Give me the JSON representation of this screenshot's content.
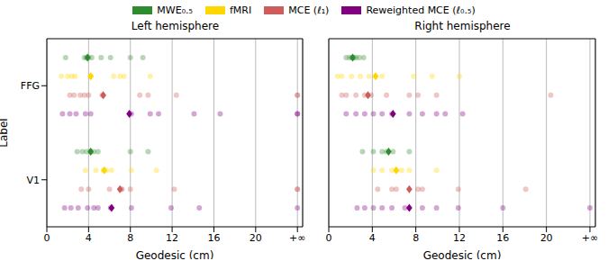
{
  "chart_data": [
    {
      "type": "scatter",
      "title": "Left hemisphere",
      "x_label": "Geodesic (cm)",
      "y_label": "Label",
      "categories": [
        "FFG",
        "V1"
      ],
      "xlim": [
        0,
        24.5
      ],
      "xticks": [
        0,
        4,
        8,
        12,
        16,
        20,
        {
          "value": 24,
          "label": "+∞"
        }
      ],
      "grid": true,
      "legend": "top",
      "series": [
        {
          "name": "MWE₀.₅",
          "color": "#2e8b2e",
          "values": [
            [
              1.8,
              3.6,
              3.8,
              4.0,
              4.3,
              5.2,
              6.1,
              8.0,
              9.2
            ],
            [
              2.9,
              3.4,
              3.8,
              4.2,
              4.5,
              4.9,
              8.0,
              9.7
            ]
          ],
          "means": [
            3.9,
            4.2
          ]
        },
        {
          "name": "fMRI",
          "color": "#ffd700",
          "values": [
            [
              1.4,
              2.0,
              2.4,
              2.7,
              4.2,
              6.4,
              7.0,
              7.4,
              9.9
            ],
            [
              3.7,
              4.7,
              5.4,
              5.7,
              6.2,
              8.1,
              10.5
            ]
          ],
          "means": [
            4.2,
            5.5
          ]
        },
        {
          "name": "MCE (ℓ₁)",
          "color": "#cd5c5c",
          "values": [
            [
              2.2,
              2.6,
              3.2,
              3.6,
              4.0,
              5.3,
              8.9,
              9.7,
              12.4,
              24,
              24
            ],
            [
              3.3,
              4.0,
              6.0,
              7.1,
              7.2,
              8.0,
              12.2,
              24,
              24
            ]
          ],
          "means": [
            5.4,
            7.0
          ]
        },
        {
          "name": "Reweighted MCE (ℓ₀.₅)",
          "color": "#800080",
          "values": [
            [
              1.5,
              2.2,
              2.8,
              3.7,
              4.2,
              8.1,
              9.9,
              10.7,
              14.1,
              16.6,
              24,
              24
            ],
            [
              1.7,
              2.3,
              3.0,
              3.9,
              4.5,
              4.9,
              6.1,
              8.1,
              11.9,
              14.6,
              24
            ]
          ],
          "means": [
            7.9,
            6.2
          ]
        }
      ]
    },
    {
      "type": "scatter",
      "title": "Right hemisphere",
      "x_label": "Geodesic (cm)",
      "categories": [
        "FFG",
        "V1"
      ],
      "xlim": [
        0,
        24.5
      ],
      "xticks": [
        0,
        4,
        8,
        12,
        16,
        20,
        {
          "value": 24,
          "label": "+∞"
        }
      ],
      "grid": true,
      "tick_labels": "x",
      "series": [
        {
          "name": "MWE₀.₅",
          "color": "#2e8b2e",
          "values": [
            [
              1.6,
              1.9,
              2.1,
              2.3,
              2.5,
              2.8,
              3.2
            ],
            [
              3.1,
              4.1,
              4.9,
              5.3,
              5.9,
              7.4
            ]
          ],
          "means": [
            2.2,
            5.5
          ]
        },
        {
          "name": "fMRI",
          "color": "#ffd700",
          "values": [
            [
              0.8,
              1.2,
              2.1,
              2.9,
              3.7,
              4.3,
              4.9,
              7.8,
              9.5,
              12.0
            ],
            [
              4.1,
              4.9,
              5.8,
              6.2,
              6.7,
              7.4,
              9.9
            ]
          ],
          "means": [
            4.3,
            6.2
          ]
        },
        {
          "name": "MCE (ℓ₁)",
          "color": "#cd5c5c",
          "values": [
            [
              1.2,
              1.6,
              2.5,
              3.3,
              3.9,
              5.3,
              7.4,
              8.2,
              9.9,
              20.4
            ],
            [
              4.5,
              5.8,
              6.2,
              8.2,
              8.6,
              11.9,
              18.1
            ]
          ],
          "means": [
            3.6,
            7.4
          ]
        },
        {
          "name": "Reweighted MCE (ℓ₀.₅)",
          "color": "#800080",
          "values": [
            [
              1.6,
              2.5,
              3.3,
              4.1,
              4.9,
              5.8,
              7.4,
              8.6,
              9.9,
              10.7,
              12.3
            ],
            [
              2.6,
              3.3,
              4.1,
              4.9,
              5.8,
              7.0,
              8.6,
              9.9,
              11.9,
              16.0,
              24
            ]
          ],
          "means": [
            5.9,
            7.4
          ]
        }
      ]
    }
  ]
}
